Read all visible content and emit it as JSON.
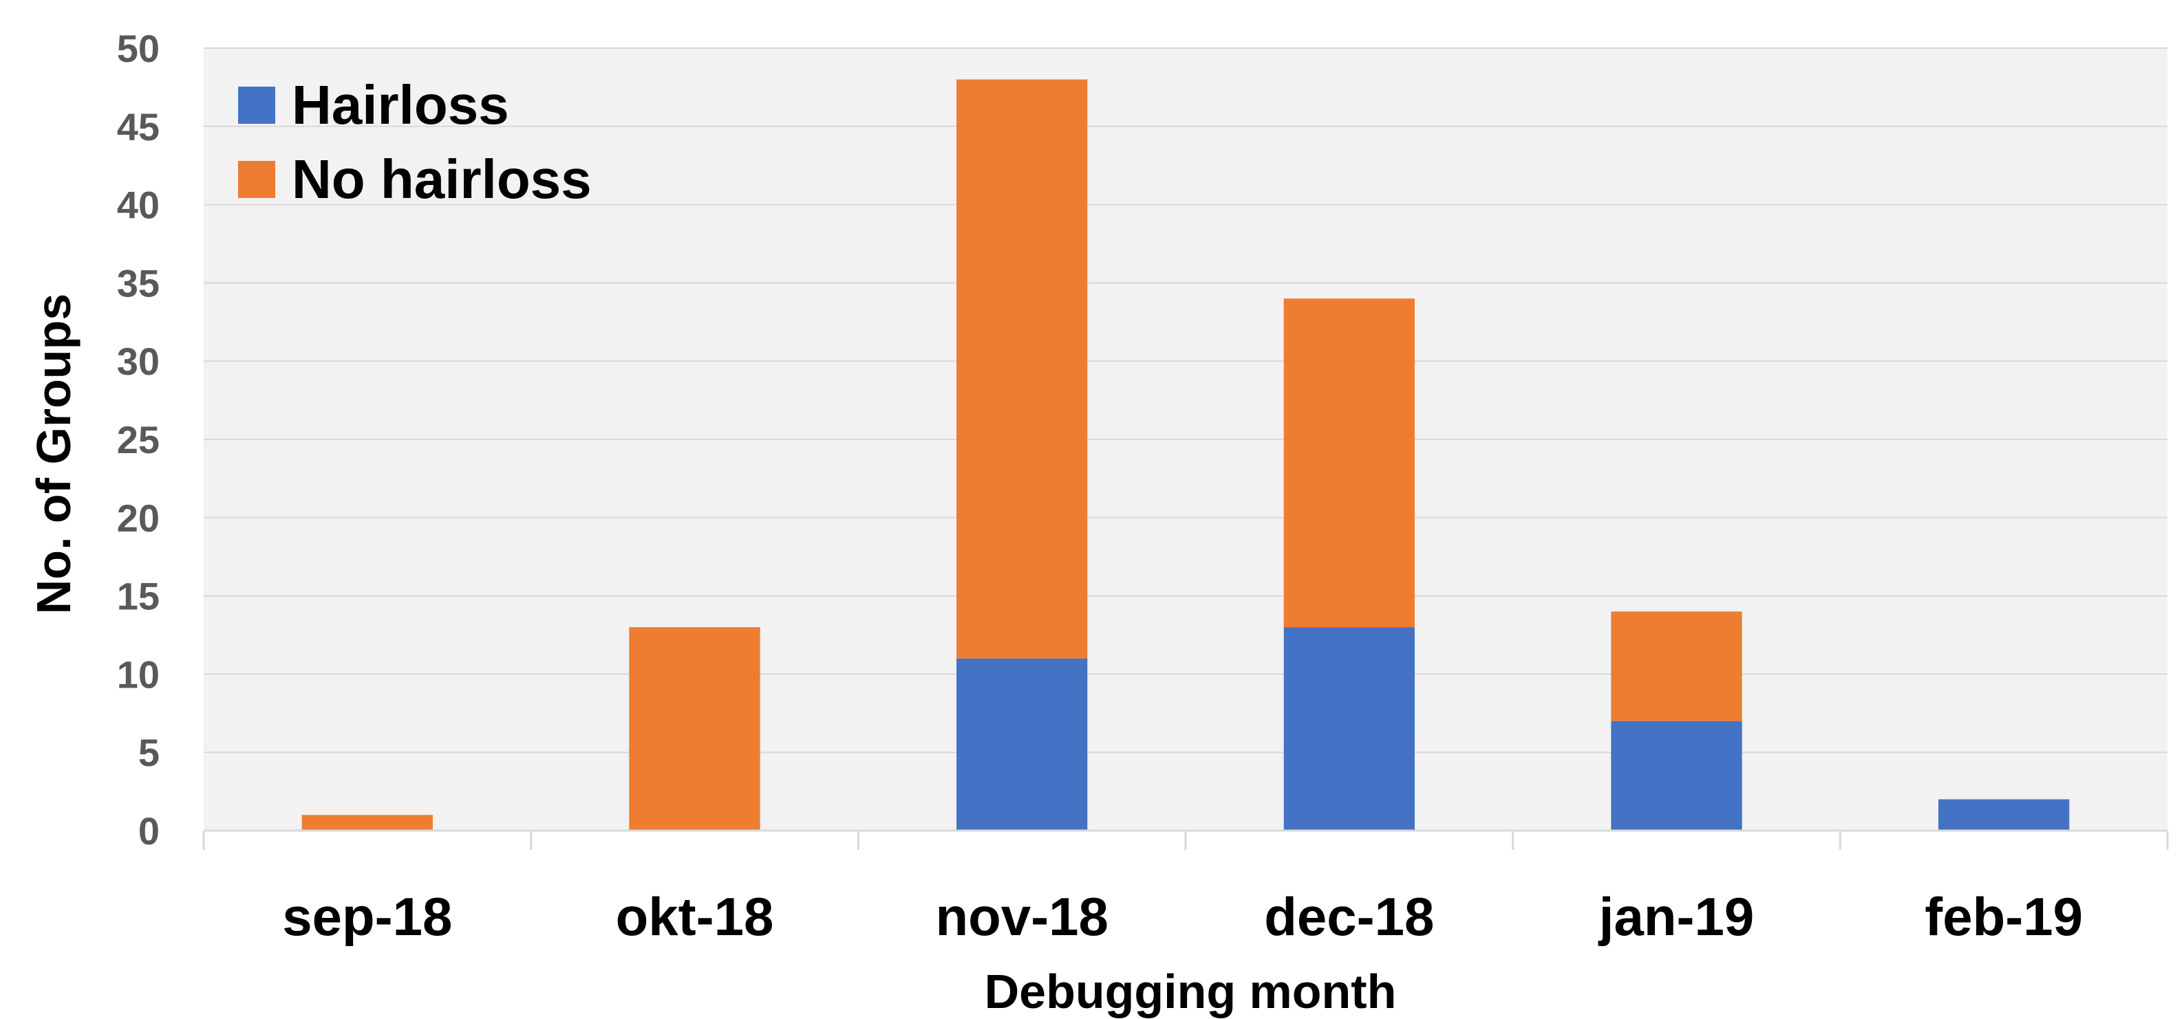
{
  "chart_data": {
    "type": "bar",
    "stacked": true,
    "categories": [
      "sep-18",
      "okt-18",
      "nov-18",
      "dec-18",
      "jan-19",
      "feb-19"
    ],
    "series": [
      {
        "name": "Hairloss",
        "values": [
          0,
          0,
          11,
          13,
          7,
          2
        ],
        "color": "#4472C4"
      },
      {
        "name": "No hairloss",
        "values": [
          1,
          13,
          37,
          21,
          7,
          0
        ],
        "color": "#ED7D31"
      }
    ],
    "xlabel": "Debugging month",
    "ylabel": "No. of Groups",
    "ylim": [
      0,
      50
    ],
    "yticks": [
      0,
      5,
      10,
      15,
      20,
      25,
      30,
      35,
      40,
      45,
      50
    ],
    "grid": true,
    "legend_position": "top-left",
    "plot_background": "#F2F2F2",
    "grid_color": "#D9D9D9"
  }
}
